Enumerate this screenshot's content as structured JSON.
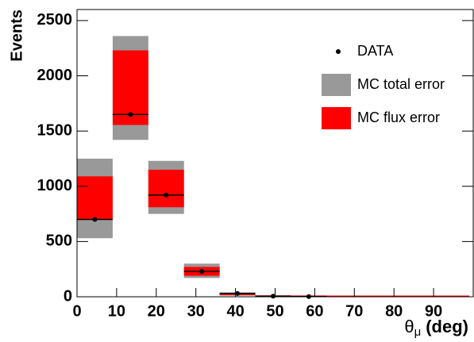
{
  "chart_data": {
    "type": "histogram",
    "y_label": "Events",
    "x_label_symbol": "θ",
    "x_label_subscript": "μ",
    "x_label_unit": "(deg)",
    "bins": [
      0,
      9,
      18,
      27,
      36,
      45,
      54,
      63,
      72,
      81,
      90,
      99
    ],
    "series": [
      {
        "name": "DATA",
        "color": "#000000",
        "values": [
          700,
          1650,
          920,
          230,
          30,
          5,
          2,
          null,
          null,
          null,
          null
        ]
      },
      {
        "name": "MC total error",
        "color": "#999999",
        "low": [
          530,
          1420,
          750,
          170,
          10,
          0,
          0,
          0,
          0,
          0,
          0
        ],
        "high": [
          1250,
          2360,
          1230,
          300,
          40,
          8,
          4,
          0,
          0,
          0,
          0
        ]
      },
      {
        "name": "MC flux error",
        "color": "#ff0000",
        "low": [
          700,
          1555,
          810,
          190,
          15,
          2,
          1,
          0,
          0,
          0,
          0
        ],
        "high": [
          1090,
          2230,
          1150,
          270,
          35,
          6,
          3,
          0,
          0,
          0,
          0
        ]
      }
    ],
    "xlim": [
      0,
      100
    ],
    "ylim": [
      0,
      2600
    ],
    "xticks": [
      0,
      10,
      20,
      30,
      40,
      50,
      60,
      70,
      80,
      90
    ],
    "yticks": [
      0,
      500,
      1000,
      1500,
      2000,
      2500
    ],
    "legend": "top-right"
  }
}
